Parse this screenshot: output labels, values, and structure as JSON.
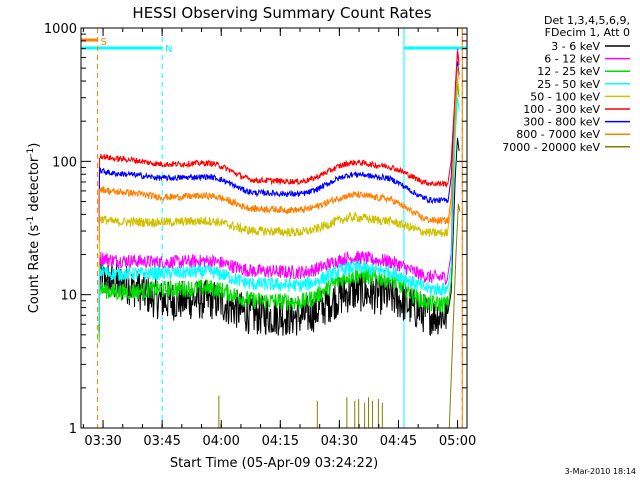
{
  "chart_data": {
    "type": "line",
    "title": "HESSI Observing Summary Count Rates",
    "xlabel": "Start Time (05-Apr-09 03:24:22)",
    "ylabel_main": "Count Rate (s",
    "ylabel_sup1": "-1",
    "ylabel_mid": " detector",
    "ylabel_sup2": "-1",
    "ylabel_end": ")",
    "yscale": "log",
    "ylim": [
      1,
      1000
    ],
    "xlim_minutes": [
      0,
      98
    ],
    "x_ticks": [
      {
        "label": "03:30",
        "min": 5.6
      },
      {
        "label": "03:45",
        "min": 20.6
      },
      {
        "label": "04:00",
        "min": 35.6
      },
      {
        "label": "04:15",
        "min": 50.6
      },
      {
        "label": "04:30",
        "min": 65.6
      },
      {
        "label": "04:45",
        "min": 80.6
      },
      {
        "label": "05:00",
        "min": 95.6
      }
    ],
    "y_ticks": [
      {
        "label": "1",
        "value": 1
      },
      {
        "label": "10",
        "value": 10
      },
      {
        "label": "100",
        "value": 100
      },
      {
        "label": "1000",
        "value": 1000
      }
    ],
    "legend_header": [
      "Det 1,3,4,5,6,9,",
      "FDecim 1, Att 0"
    ],
    "footer_date": "3-Mar-2010 18:14",
    "intervals": [
      {
        "label": "S",
        "start_min": 0,
        "end_min": 4.2,
        "color": "#ff8000"
      },
      {
        "label": "N",
        "start_min": 0,
        "end_min": 20.6,
        "color": "#00ffff"
      },
      {
        "label": "",
        "start_min": 82.0,
        "end_min": 98,
        "color": "#00ffff"
      }
    ],
    "vertical_markers": [
      {
        "min": 4.2,
        "color": "#ff8000"
      },
      {
        "min": 20.6,
        "color": "#00ffff"
      },
      {
        "min": 82.0,
        "color": "#00ffff"
      },
      {
        "min": 96.8,
        "color": "#ff8000"
      }
    ],
    "series": [
      {
        "name": "3 - 6 keV",
        "color": "#000000",
        "start": 13,
        "bump1": 9,
        "dip": 7,
        "bump2": 10.5,
        "end": 7,
        "noise": 0.35
      },
      {
        "name": "6 - 12 keV",
        "color": "#ff00ff",
        "start": 19,
        "bump1": 17.5,
        "dip": 15,
        "bump2": 19,
        "end": 13.5,
        "noise": 0.12
      },
      {
        "name": "12 - 25 keV",
        "color": "#00dd00",
        "start": 11,
        "bump1": 11,
        "dip": 9,
        "bump2": 14,
        "end": 8.5,
        "noise": 0.15
      },
      {
        "name": "25 - 50 keV",
        "color": "#00ffff",
        "start": 15,
        "bump1": 14.5,
        "dip": 12,
        "bump2": 16,
        "end": 11,
        "noise": 0.12
      },
      {
        "name": "50 - 100 keV",
        "color": "#d0c000",
        "start": 37,
        "bump1": 35,
        "dip": 30,
        "bump2": 38,
        "end": 29,
        "noise": 0.08
      },
      {
        "name": "100 - 300 keV",
        "color": "#ff0000",
        "start": 110,
        "bump1": 95,
        "dip": 72,
        "bump2": 98,
        "end": 68,
        "noise": 0.05
      },
      {
        "name": "300 - 800 keV",
        "color": "#0000ff",
        "start": 85,
        "bump1": 75,
        "dip": 58,
        "bump2": 80,
        "end": 51,
        "noise": 0.05
      },
      {
        "name": "800 - 7000 keV",
        "color": "#ff8000",
        "start": 62,
        "bump1": 54,
        "dip": 44,
        "bump2": 56,
        "end": 36,
        "noise": 0.06
      },
      {
        "name": "7000 - 20000 keV",
        "color": "#808000",
        "start": 1,
        "bump1": 1,
        "dip": 1,
        "bump2": 1,
        "end": 1,
        "noise": 0
      }
    ]
  }
}
